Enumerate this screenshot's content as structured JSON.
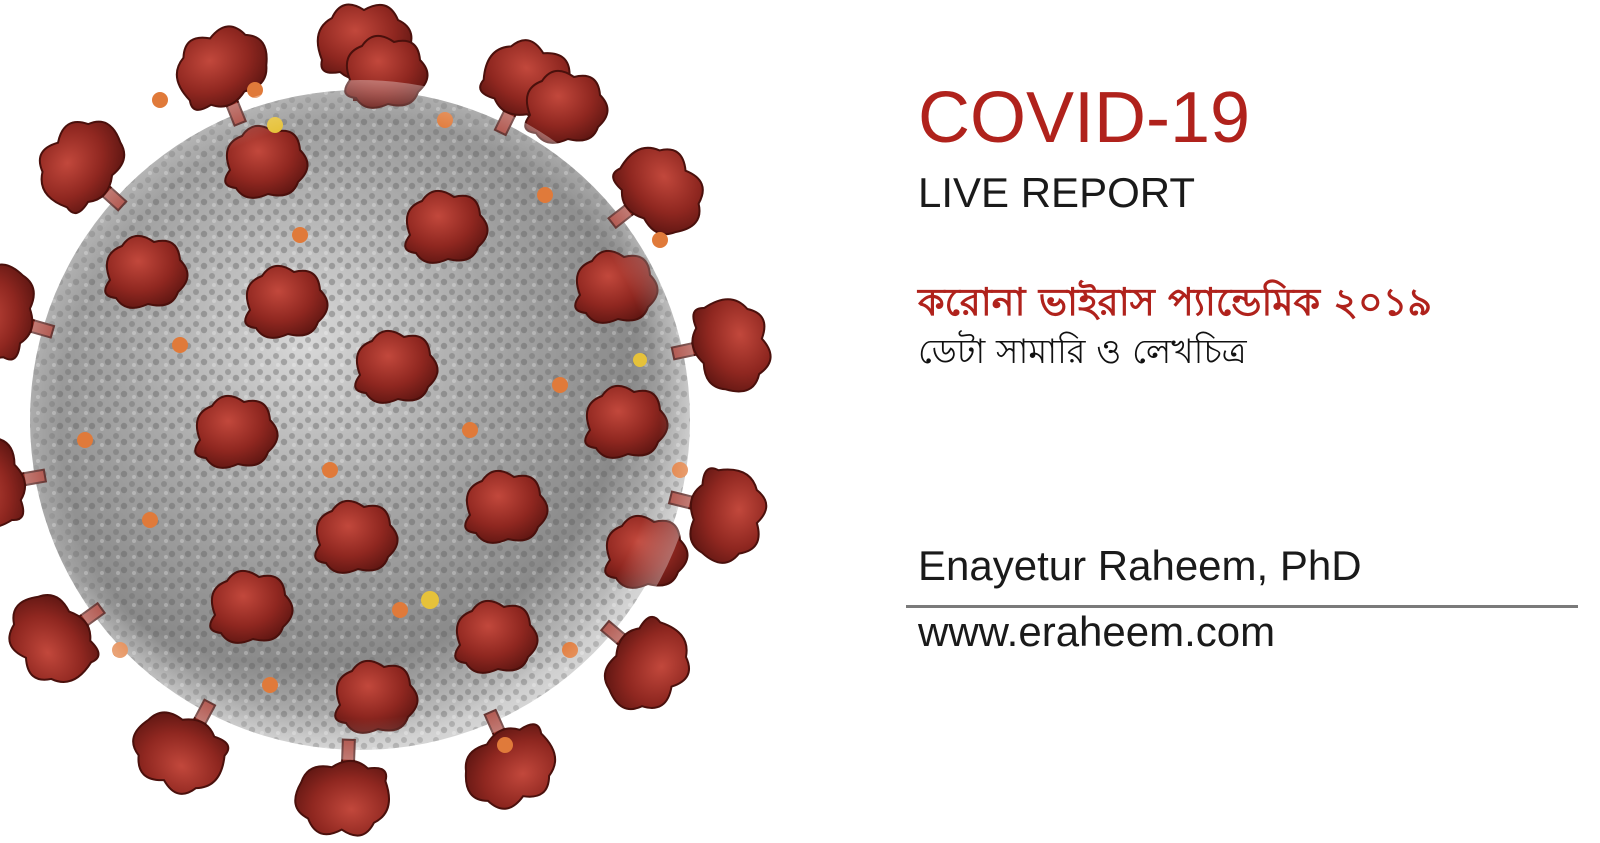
{
  "slide": {
    "title": "COVID-19",
    "subtitle": "LIVE REPORT",
    "bangla_title": "করোনা ভাইরাস প্যান্ডেমিক ২০১৯",
    "bangla_subtitle": "ডেটা সামারি ও লেখচিত্র",
    "author": "Enayetur Raheem, PhD",
    "website": "www.eraheem.com"
  },
  "colors": {
    "accent_red": "#b0221c",
    "text_dark": "#1a1a1a",
    "divider_gray": "#7a7a7a",
    "virus_body": "#8f8f8f",
    "spike_red": "#9b2a22",
    "protein_orange": "#e07a3a",
    "protein_yellow": "#e6c23a"
  },
  "illustration": {
    "icon": "coronavirus-icon"
  }
}
